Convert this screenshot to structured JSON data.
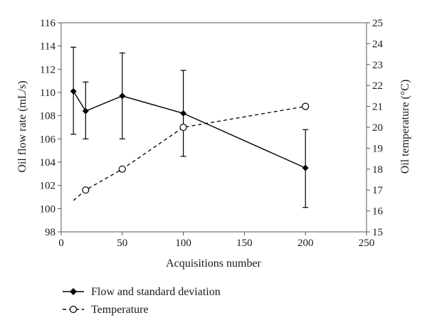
{
  "chart_data": {
    "type": "line",
    "xlabel": "Acquisitions number",
    "ylabel_left": "Oil flow rate (mL/s)",
    "ylabel_right": "Oil temperature (°C)",
    "x_ticks": [
      0,
      50,
      100,
      150,
      200,
      250
    ],
    "y_left_ticks": [
      98,
      100,
      102,
      104,
      106,
      108,
      110,
      112,
      114,
      116
    ],
    "y_right_ticks": [
      15,
      16,
      17,
      18,
      19,
      20,
      21,
      22,
      23,
      24,
      25
    ],
    "xlim": [
      0,
      250
    ],
    "ylim_left": [
      98,
      116
    ],
    "ylim_right": [
      15,
      25
    ],
    "grid": false,
    "legend_position": "bottom-left",
    "series": [
      {
        "name": "Flow and standard deviation",
        "axis": "left",
        "style": "solid",
        "marker": "filled-diamond",
        "x": [
          10,
          20,
          50,
          100,
          200
        ],
        "y": [
          110.1,
          108.4,
          109.7,
          108.2,
          103.5
        ],
        "yerr_low": [
          106.4,
          106.0,
          106.0,
          104.5,
          100.1
        ],
        "yerr_high": [
          113.9,
          110.9,
          113.4,
          111.9,
          106.8
        ]
      },
      {
        "name": "Temperature",
        "axis": "right",
        "style": "dashed",
        "marker": "open-circle",
        "x": [
          10,
          20,
          50,
          100,
          200
        ],
        "y": [
          16.5,
          17.0,
          18.0,
          20.0,
          21.0
        ],
        "marker_shown": [
          false,
          true,
          true,
          true,
          true
        ]
      }
    ],
    "colors": {
      "line": "#000000",
      "axis": "#555555"
    }
  }
}
